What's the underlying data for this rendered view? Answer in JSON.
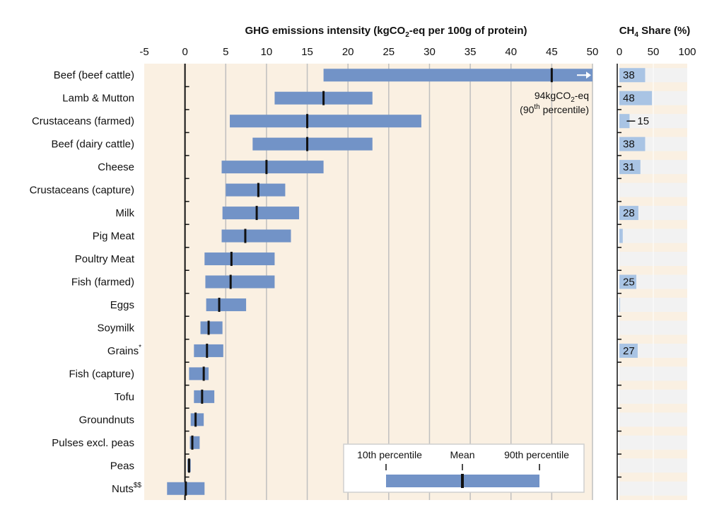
{
  "colors": {
    "panel_bg": "#faf0e2",
    "bar": "#7293c7",
    "mean": "#111111",
    "grid": "#bfbfbf",
    "ch4_bar": "#a9c4e4",
    "ch4_bg": "#f2f2f2"
  },
  "chart_data": [
    {
      "type": "bar",
      "subtype": "range",
      "title_parts": {
        "pre": "GHG emissions intensity (kgCO",
        "sub": "2",
        "post": "-eq per 100g of protein)"
      },
      "xlim": [
        -5,
        50
      ],
      "xticks": [
        -5,
        0,
        5,
        10,
        15,
        20,
        25,
        30,
        35,
        40,
        45,
        50
      ],
      "categories": [
        {
          "label": "Beef (beef cattle)",
          "sup": "",
          "p10": 17,
          "mean": 45,
          "p90": 50,
          "extends_beyond_axis": true
        },
        {
          "label": "Lamb & Mutton",
          "sup": "",
          "p10": 11,
          "mean": 17,
          "p90": 23
        },
        {
          "label": "Crustaceans (farmed)",
          "sup": "",
          "p10": 5.5,
          "mean": 15,
          "p90": 29
        },
        {
          "label": "Beef (dairy cattle)",
          "sup": "",
          "p10": 8.3,
          "mean": 15,
          "p90": 23
        },
        {
          "label": "Cheese",
          "sup": "",
          "p10": 4.5,
          "mean": 10,
          "p90": 17
        },
        {
          "label": "Crustaceans (capture)",
          "sup": "",
          "p10": 5,
          "mean": 9,
          "p90": 12.3
        },
        {
          "label": "Milk",
          "sup": "",
          "p10": 4.6,
          "mean": 8.8,
          "p90": 14
        },
        {
          "label": "Pig Meat",
          "sup": "",
          "p10": 4.5,
          "mean": 7.4,
          "p90": 13
        },
        {
          "label": "Poultry Meat",
          "sup": "",
          "p10": 2.4,
          "mean": 5.7,
          "p90": 11
        },
        {
          "label": "Fish (farmed)",
          "sup": "",
          "p10": 2.5,
          "mean": 5.6,
          "p90": 11
        },
        {
          "label": "Eggs",
          "sup": "",
          "p10": 2.6,
          "mean": 4.2,
          "p90": 7.5
        },
        {
          "label": "Soymilk",
          "sup": "",
          "p10": 1.9,
          "mean": 2.9,
          "p90": 4.6
        },
        {
          "label": "Grains",
          "sup": "*",
          "p10": 1.1,
          "mean": 2.7,
          "p90": 4.7
        },
        {
          "label": "Fish (capture)",
          "sup": "",
          "p10": 0.5,
          "mean": 2.3,
          "p90": 2.9
        },
        {
          "label": "Tofu",
          "sup": "",
          "p10": 1.1,
          "mean": 2.1,
          "p90": 3.6
        },
        {
          "label": "Groundnuts",
          "sup": "",
          "p10": 0.7,
          "mean": 1.3,
          "p90": 2.3
        },
        {
          "label": "Pulses excl. peas",
          "sup": "",
          "p10": 0.6,
          "mean": 0.9,
          "p90": 1.8
        },
        {
          "label": "Peas",
          "sup": "",
          "p10": 0.3,
          "mean": 0.5,
          "p90": 0.7
        },
        {
          "label": "Nuts",
          "sup": "$$",
          "p10": -2.2,
          "mean": 0.1,
          "p90": 2.4
        }
      ],
      "annotation": {
        "line1_pre": "94kgCO",
        "line1_sub": "2",
        "line1_post": "-eq",
        "line2_pre": "(90",
        "line2_sup": "th",
        "line2_post": " percentile)"
      },
      "legend": {
        "placement": "bottom-right",
        "p10_label": "10th percentile",
        "mean_label": "Mean",
        "p90_label": "90th percentile"
      }
    },
    {
      "type": "bar",
      "title_parts": {
        "pre": "CH",
        "sub": "4",
        "post": " Share (%)"
      },
      "xlim": [
        0,
        100
      ],
      "xticks": [
        0,
        50,
        100
      ],
      "values": [
        38,
        48,
        15,
        38,
        31,
        null,
        28,
        5,
        null,
        25,
        1,
        null,
        27,
        null,
        null,
        null,
        null,
        null,
        null
      ],
      "labels": [
        "38",
        "48",
        "15",
        "38",
        "31",
        "",
        "28",
        "",
        "",
        "25",
        "",
        "",
        "27",
        "",
        "",
        "",
        "",
        "",
        ""
      ],
      "label_style": [
        "inside",
        "inside",
        "outside-leader",
        "inside",
        "inside",
        "",
        "inside",
        "",
        "",
        "inside",
        "",
        "",
        "inside",
        "",
        "",
        "",
        "",
        "",
        ""
      ]
    }
  ]
}
